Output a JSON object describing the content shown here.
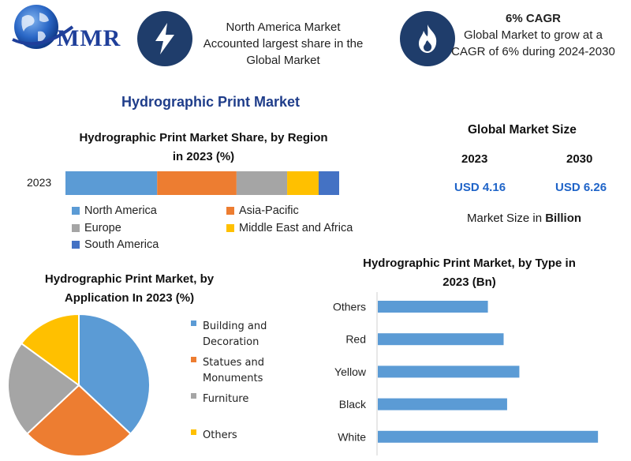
{
  "logo": {
    "text": "MMR"
  },
  "info_boxes": [
    {
      "icon": "lightning-icon",
      "text_lines": [
        "North America Market",
        "Accounted largest share in the",
        "Global Market"
      ]
    },
    {
      "icon": "flame-icon",
      "heading": "6% CAGR",
      "text_lines": [
        "Global Market to grow at a",
        "CAGR of 6% during 2024-2030"
      ]
    }
  ],
  "main_title": "Hydrographic Print Market",
  "global_market": {
    "title": "Global Market Size",
    "years": [
      "2023",
      "2030"
    ],
    "values": [
      "USD 4.16",
      "USD 6.26"
    ],
    "note_prefix": "Market Size in ",
    "note_bold": "Billion"
  },
  "colors": {
    "blue": "#5b9bd5",
    "orange": "#ed7d31",
    "gray": "#a5a5a5",
    "yellow": "#ffc000",
    "dark_blue": "#4472c4",
    "navy": "#1f3d6b",
    "title_blue": "#1f3d8a",
    "value_blue": "#1f64c8"
  },
  "chart_data": [
    {
      "type": "bar",
      "orientation": "horizontal-stacked",
      "title": "Hydrographic Print Market Share, by Region in 2023 (%)",
      "title_lines": [
        "Hydrographic Print Market Share, by Region",
        "in 2023 (%)"
      ],
      "categories": [
        "2023"
      ],
      "series": [
        {
          "name": "North America",
          "values": [
            33.5
          ],
          "color": "#5b9bd5"
        },
        {
          "name": "Asia-Pacific",
          "values": [
            29
          ],
          "color": "#ed7d31"
        },
        {
          "name": "Europe",
          "values": [
            18.5
          ],
          "color": "#a5a5a5"
        },
        {
          "name": "Middle East and Africa",
          "values": [
            11.5
          ],
          "color": "#ffc000"
        },
        {
          "name": "South America",
          "values": [
            7.5
          ],
          "color": "#4472c4"
        }
      ],
      "legend": "bottom"
    },
    {
      "type": "pie",
      "title": "Hydrographic Print Market, by Application In 2023 (%)",
      "title_lines": [
        "Hydrographic Print Market, by",
        "Application In 2023 (%)"
      ],
      "slices": [
        {
          "label": "Building and Decoration",
          "label_lines": [
            "Building and",
            "Decoration"
          ],
          "value": 37,
          "color": "#5b9bd5"
        },
        {
          "label": "Statues and Monuments",
          "label_lines": [
            "Statues and",
            "Monuments"
          ],
          "value": 26,
          "color": "#ed7d31"
        },
        {
          "label": "Furniture",
          "label_lines": [
            "Furniture"
          ],
          "value": 22,
          "color": "#a5a5a5"
        },
        {
          "label": "Others",
          "label_lines": [
            "Others"
          ],
          "value": 15,
          "color": "#ffc000"
        }
      ],
      "legend": "right"
    },
    {
      "type": "bar",
      "orientation": "horizontal",
      "title": "Hydrographic Print Market, by Type in 2023 (Bn)",
      "title_lines": [
        "Hydrographic Print Market, by Type in",
        "2023 (Bn)"
      ],
      "categories": [
        "Others",
        "Red",
        "Yellow",
        "Black",
        "White"
      ],
      "values": [
        0.63,
        0.72,
        0.81,
        0.74,
        1.26
      ],
      "color": "#5b9bd5",
      "xlim": [
        0,
        1.3
      ]
    }
  ]
}
